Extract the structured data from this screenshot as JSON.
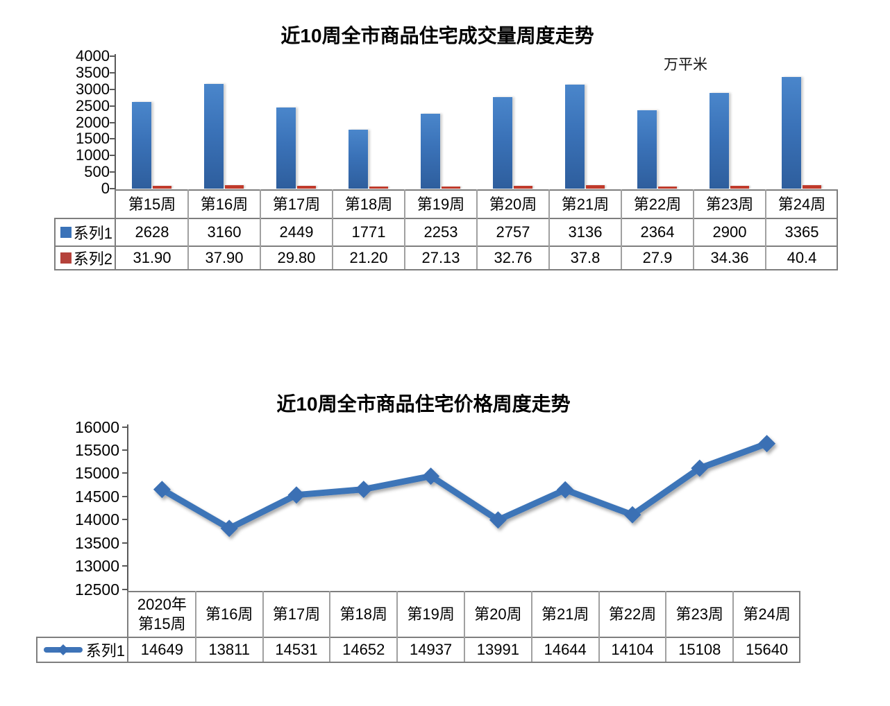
{
  "page": {
    "background": "#ffffff"
  },
  "chart_data": [
    {
      "type": "bar",
      "title": "近10周全市商品住宅成交量周度走势",
      "unit_label": "万平米",
      "categories": [
        "第15周",
        "第16周",
        "第17周",
        "第18周",
        "第19周",
        "第20周",
        "第21周",
        "第22周",
        "第23周",
        "第24周"
      ],
      "series": [
        {
          "name": "系列1",
          "values": [
            "2628",
            "3160",
            "2449",
            "1771",
            "2253",
            "2757",
            "3136",
            "2364",
            "2900",
            "3365"
          ],
          "color": "#3a72b8",
          "gradient_top": "#4a86cb",
          "gradient_bottom": "#2e5e9d"
        },
        {
          "name": "系列2",
          "values": [
            "31.90",
            "37.90",
            "29.80",
            "21.20",
            "27.13",
            "32.76",
            "37.8",
            "27.9",
            "34.36",
            "40.4"
          ],
          "color": "#b5423b",
          "bar_color": "#c03a2b"
        }
      ],
      "y_ticks": [
        "4000",
        "3500",
        "3000",
        "2500",
        "2000",
        "1500",
        "1000",
        "500",
        "0"
      ],
      "ylim": [
        0,
        4000
      ],
      "grid": false,
      "legend_position": "table-left",
      "data_table": true
    },
    {
      "type": "line",
      "title": "近10周全市商品住宅价格周度走势",
      "categories": [
        "2020年\n第15周",
        "第16周",
        "第17周",
        "第18周",
        "第19周",
        "第20周",
        "第21周",
        "第22周",
        "第23周",
        "第24周"
      ],
      "series": [
        {
          "name": "系列1",
          "values": [
            "14649",
            "13811",
            "14531",
            "14652",
            "14937",
            "13991",
            "14644",
            "14104",
            "15108",
            "15640"
          ],
          "color": "#3e74b8",
          "marker": "diamond"
        }
      ],
      "y_ticks": [
        "16000",
        "15500",
        "15000",
        "14500",
        "14000",
        "13500",
        "13000",
        "12500"
      ],
      "ylim": [
        12500,
        16000
      ],
      "grid": false,
      "legend_position": "table-left",
      "data_table": true
    }
  ]
}
